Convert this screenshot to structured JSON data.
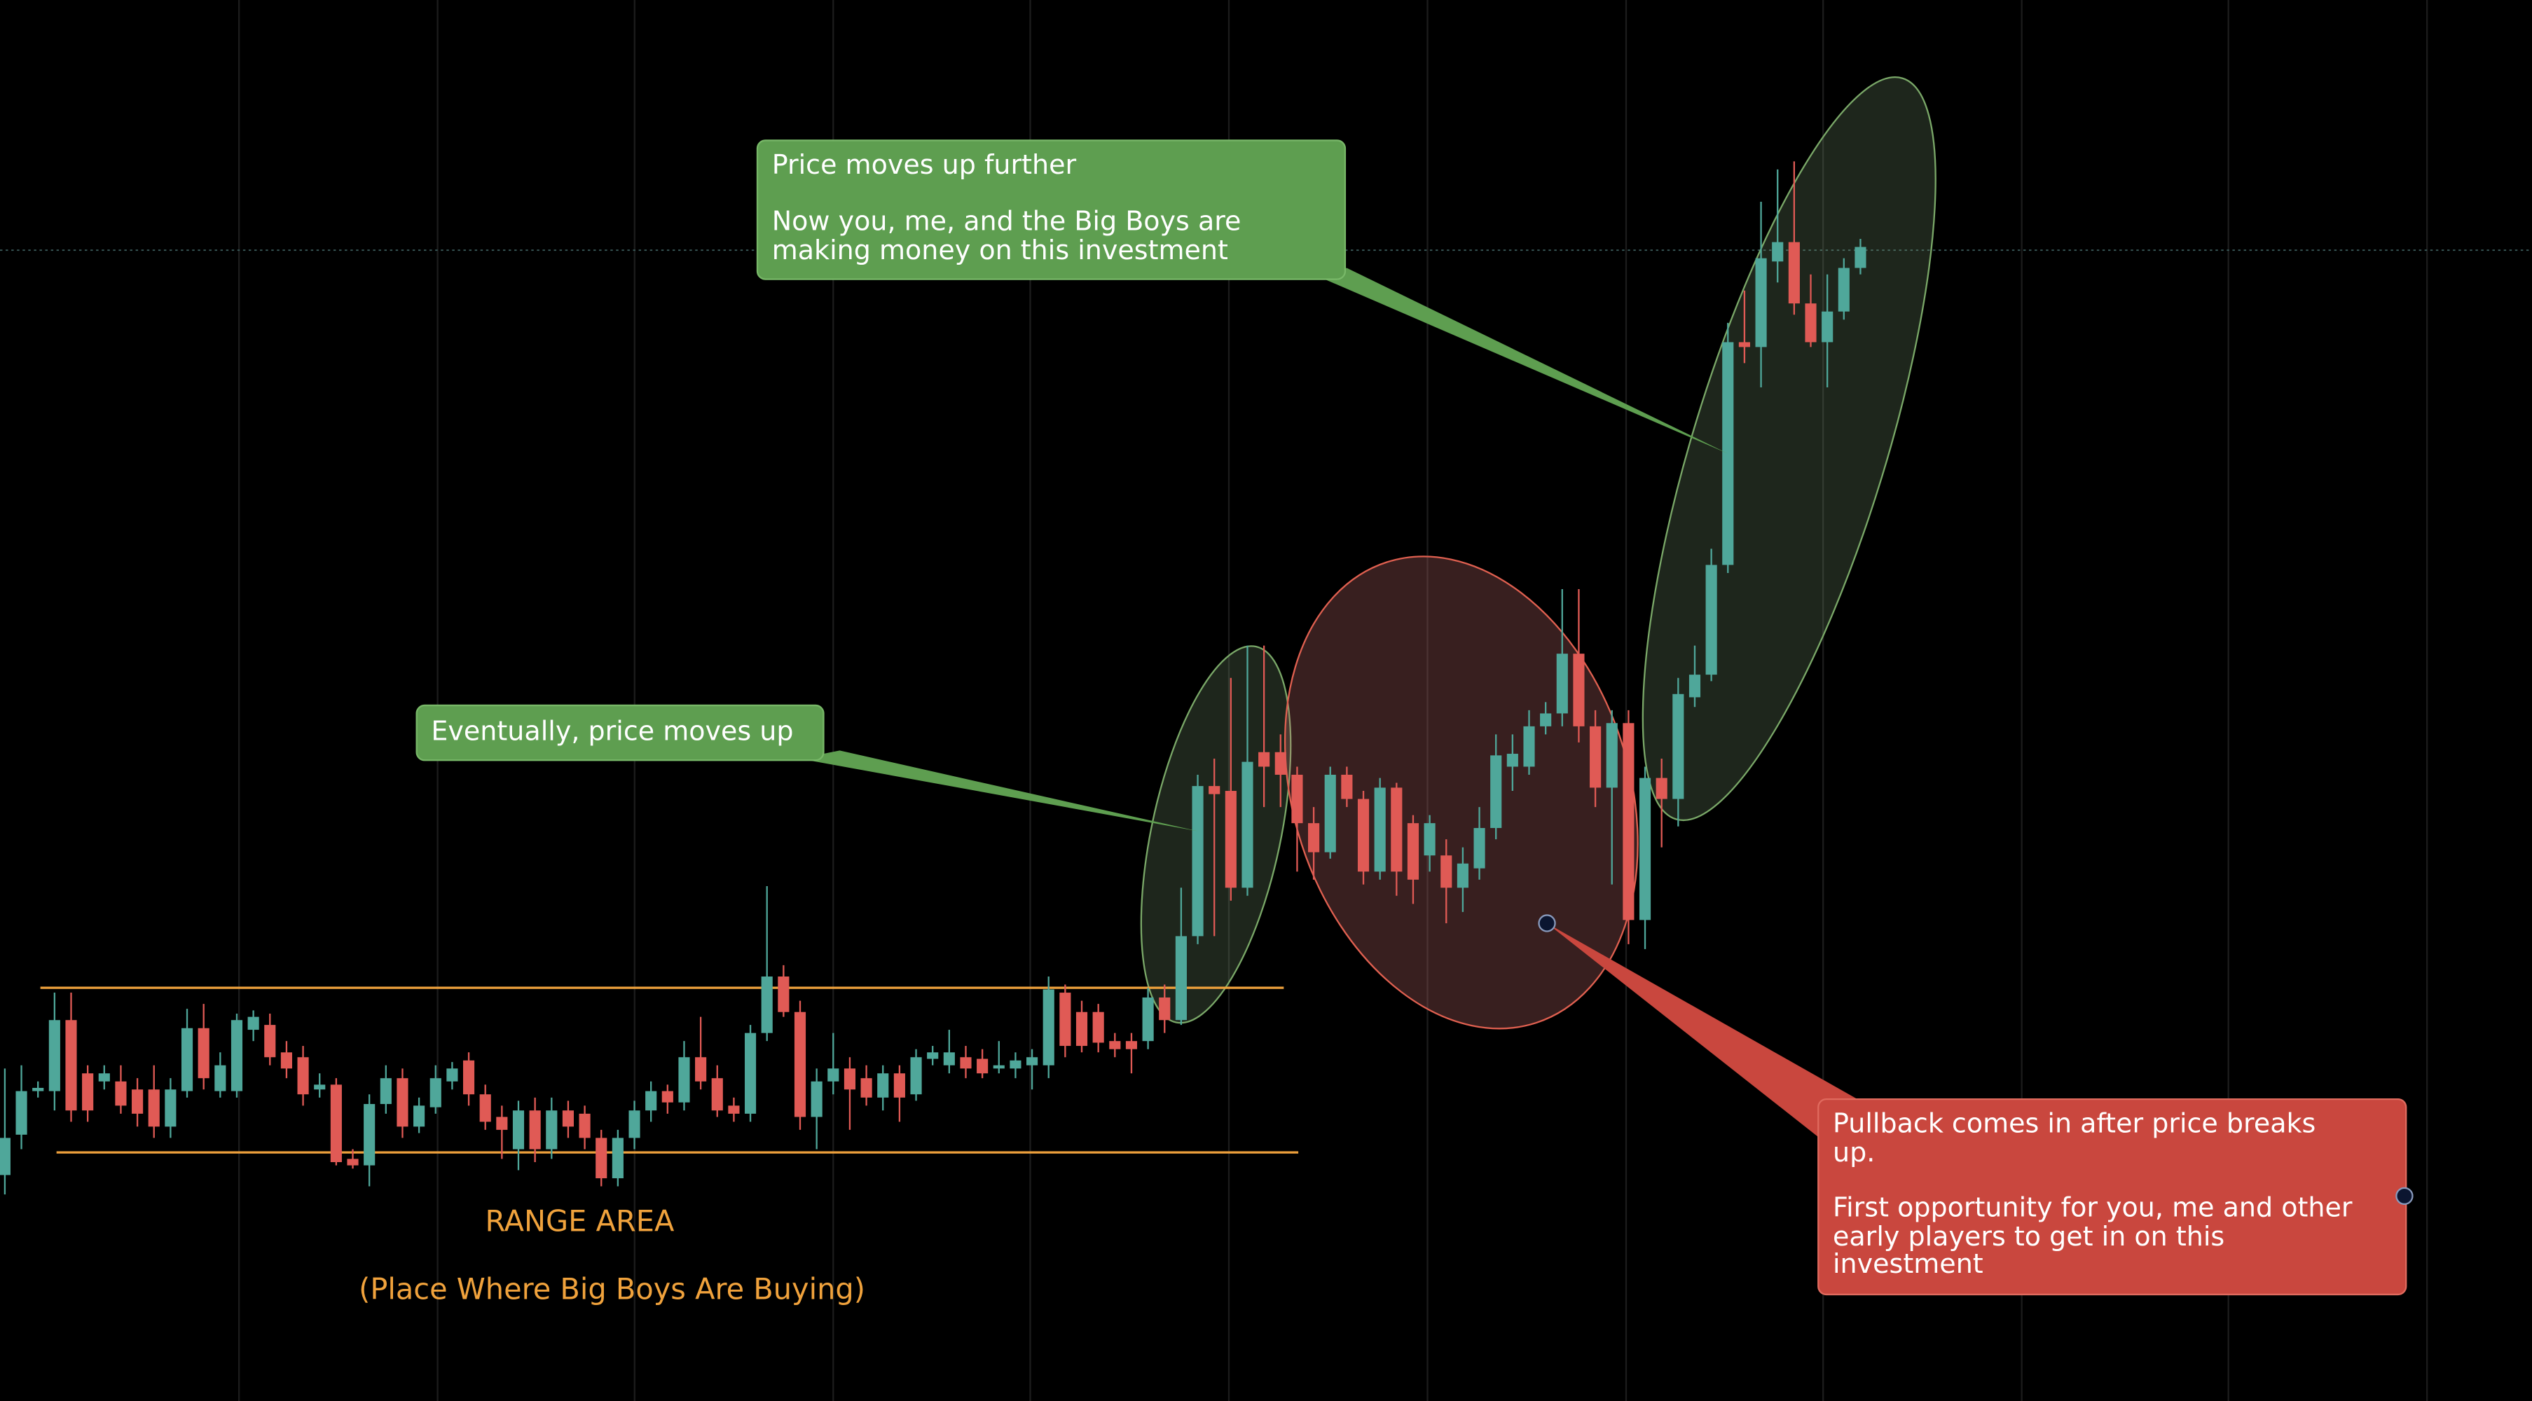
{
  "chart_data": {
    "type": "candlestick",
    "up_color": "#4fa79a",
    "down_color": "#e05a55",
    "ylim": [
      0,
      868
    ],
    "grid": true,
    "open": [
      140,
      165,
      192,
      192,
      236,
      203,
      198,
      198,
      193,
      193,
      170,
      192,
      231,
      192,
      192,
      230,
      233,
      216,
      213,
      193,
      196,
      150,
      146,
      184,
      200,
      170,
      182,
      198,
      211,
      190,
      176,
      156,
      180,
      156,
      180,
      178,
      163,
      138,
      163,
      180,
      192,
      185,
      213,
      200,
      183,
      178,
      228,
      263,
      241,
      176,
      198,
      206,
      200,
      188,
      203,
      190,
      212,
      208,
      213,
      212,
      206,
      206,
      208,
      208,
      253,
      241,
      241,
      223,
      223,
      223,
      250,
      236,
      288,
      381,
      378,
      318,
      402,
      402,
      388,
      358,
      340,
      388,
      373,
      328,
      380,
      358,
      338,
      338,
      318,
      330,
      355,
      393,
      393,
      418,
      426,
      463,
      418,
      380,
      420,
      298,
      386,
      373,
      436,
      450,
      518,
      656,
      653,
      706,
      718,
      680,
      656,
      675,
      702
    ],
    "high": [
      206,
      208,
      198,
      253,
      253,
      208,
      208,
      208,
      200,
      208,
      200,
      243,
      246,
      216,
      240,
      242,
      240,
      223,
      220,
      203,
      200,
      156,
      190,
      208,
      206,
      188,
      208,
      210,
      216,
      196,
      183,
      186,
      188,
      188,
      186,
      183,
      168,
      168,
      186,
      198,
      196,
      223,
      238,
      208,
      188,
      233,
      319,
      270,
      248,
      206,
      228,
      213,
      208,
      208,
      208,
      218,
      220,
      230,
      220,
      218,
      223,
      216,
      218,
      263,
      258,
      248,
      246,
      228,
      228,
      256,
      258,
      318,
      388,
      398,
      448,
      468,
      468,
      413,
      393,
      368,
      393,
      393,
      378,
      386,
      383,
      363,
      363,
      348,
      343,
      368,
      413,
      413,
      428,
      433,
      503,
      503,
      428,
      428,
      428,
      393,
      398,
      448,
      468,
      528,
      668,
      688,
      743,
      763,
      768,
      698,
      698,
      708,
      720
    ],
    "low": [
      128,
      156,
      188,
      180,
      173,
      173,
      193,
      178,
      170,
      163,
      163,
      188,
      193,
      188,
      188,
      223,
      208,
      200,
      183,
      188,
      146,
      144,
      133,
      178,
      163,
      166,
      178,
      193,
      183,
      168,
      150,
      143,
      148,
      150,
      163,
      156,
      133,
      133,
      156,
      173,
      178,
      180,
      193,
      176,
      173,
      173,
      223,
      238,
      168,
      156,
      190,
      168,
      183,
      180,
      173,
      186,
      208,
      203,
      200,
      200,
      203,
      200,
      193,
      200,
      213,
      216,
      216,
      213,
      203,
      218,
      228,
      233,
      283,
      288,
      310,
      313,
      368,
      368,
      328,
      323,
      336,
      368,
      320,
      323,
      313,
      308,
      328,
      296,
      303,
      323,
      348,
      378,
      388,
      413,
      418,
      408,
      368,
      320,
      283,
      280,
      343,
      356,
      430,
      446,
      513,
      643,
      628,
      693,
      673,
      653,
      628,
      670,
      698
    ],
    "close": [
      163,
      192,
      194,
      236,
      180,
      180,
      203,
      183,
      178,
      170,
      193,
      231,
      200,
      208,
      236,
      238,
      213,
      206,
      190,
      196,
      148,
      146,
      184,
      200,
      170,
      183,
      200,
      206,
      190,
      173,
      168,
      180,
      156,
      180,
      170,
      163,
      138,
      163,
      180,
      192,
      185,
      213,
      198,
      180,
      178,
      228,
      263,
      241,
      176,
      198,
      206,
      193,
      188,
      203,
      188,
      213,
      216,
      216,
      206,
      203,
      208,
      211,
      213,
      255,
      220,
      220,
      222,
      218,
      218,
      250,
      236,
      288,
      381,
      376,
      318,
      396,
      393,
      388,
      358,
      340,
      388,
      373,
      328,
      380,
      328,
      323,
      358,
      318,
      333,
      355,
      400,
      401,
      418,
      426,
      463,
      418,
      380,
      420,
      298,
      386,
      373,
      438,
      450,
      518,
      656,
      653,
      708,
      718,
      680,
      656,
      675,
      702,
      715
    ],
    "annotations": [
      {
        "paragraphs": [
          [
            "Price moves up further"
          ],
          [
            "Now you, me, and the Big Boys are",
            "making money on this investment"
          ]
        ]
      },
      {
        "paragraphs": [
          [
            "Eventually, price moves up"
          ]
        ]
      },
      {
        "paragraphs": [
          [
            "Pullback comes in after price breaks",
            "up."
          ],
          [
            "First opportunity for you, me and other",
            "early players to get in on this",
            "investment"
          ]
        ]
      },
      {
        "paragraphs": [
          [
            "RANGE AREA"
          ],
          [
            "(Place Where Big Boys Are Buying)"
          ]
        ]
      }
    ]
  }
}
